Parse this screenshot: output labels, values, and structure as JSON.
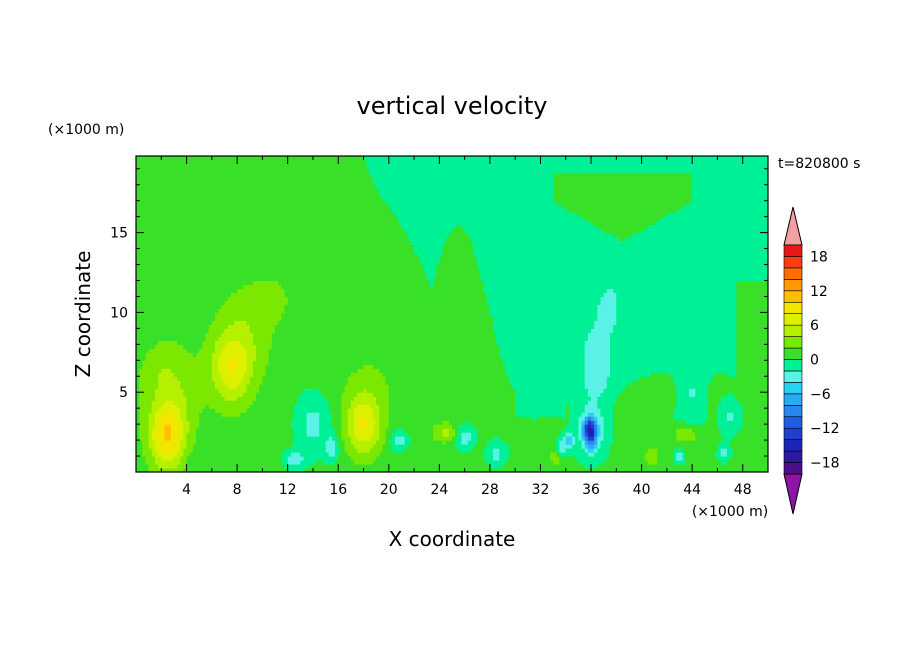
{
  "chart_data": {
    "type": "heatmap",
    "title": "vertical velocity",
    "xlabel": "X coordinate",
    "ylabel": "Z coordinate",
    "x_unit": "(×1000 m)",
    "y_unit": "(×1000 m)",
    "time_label": "t=820800 s",
    "xlim": [
      0,
      50
    ],
    "ylim": [
      0,
      19.8
    ],
    "x_ticks": [
      4,
      8,
      12,
      16,
      20,
      24,
      28,
      32,
      36,
      40,
      44,
      48
    ],
    "x_tick_labels": [
      "4",
      "8",
      "12",
      "16",
      "20",
      "24",
      "28",
      "32",
      "36",
      "40",
      "44",
      "48"
    ],
    "y_ticks": [
      5,
      10,
      15
    ],
    "y_tick_labels": [
      "5",
      "10",
      "15"
    ],
    "colorbar": {
      "levels": [
        -20,
        -18,
        -16,
        -14,
        -12,
        -10,
        -8,
        -6,
        -4,
        -2,
        0,
        2,
        4,
        6,
        8,
        10,
        12,
        14,
        16,
        18,
        20
      ],
      "colors": [
        "#4b0f8c",
        "#2a1a9e",
        "#1c25b8",
        "#1f3fd2",
        "#1f5ee0",
        "#2a86ee",
        "#2aaaf2",
        "#2ad2f2",
        "#5af2e6",
        "#00f096",
        "#38e028",
        "#7ae800",
        "#b4f000",
        "#dcf000",
        "#f4e400",
        "#ffc000",
        "#ff9a00",
        "#ff6e00",
        "#ff3c14",
        "#e81818"
      ],
      "under_color": "#8c14a8",
      "over_color": "#f4a0a0",
      "tick_values": [
        18,
        12,
        6,
        0,
        -6,
        -12,
        -18
      ],
      "tick_labels": [
        "18",
        "12",
        "6",
        "0",
        "−6",
        "−12",
        "−18"
      ]
    },
    "features": [
      {
        "name": "updraft",
        "x": 2.5,
        "z": 2.2,
        "peak": 9
      },
      {
        "name": "updraft",
        "x": 7.5,
        "z": 6.5,
        "peak": 7
      },
      {
        "name": "updraft",
        "x": 18.0,
        "z": 3.0,
        "peak": 7
      },
      {
        "name": "downdraft",
        "x": 36.0,
        "z": 2.5,
        "peak": -11
      },
      {
        "name": "downdraft",
        "x": 14.5,
        "z": 3.2,
        "peak": -4
      },
      {
        "name": "downdraft",
        "x": 36.5,
        "z": 7.0,
        "peak": -3
      },
      {
        "name": "downdraft",
        "x": 44.0,
        "z": 5.0,
        "peak": -3
      }
    ]
  }
}
